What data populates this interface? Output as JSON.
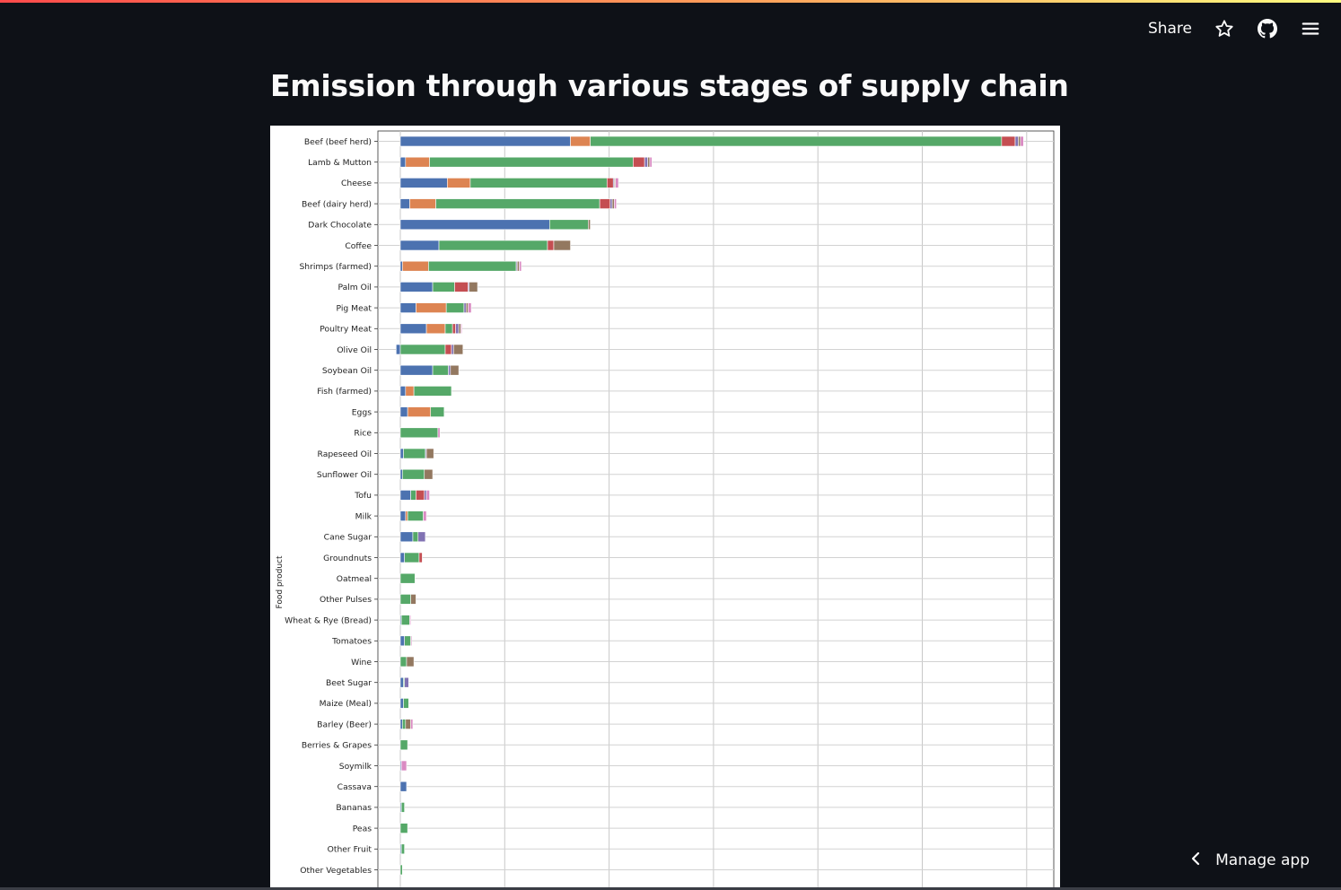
{
  "toolbar": {
    "share_label": "Share",
    "icons": [
      "star-icon",
      "github-icon",
      "hamburger-menu-icon"
    ]
  },
  "page": {
    "title": "Emission through various stages of supply chain"
  },
  "footer": {
    "manage_app_label": "Manage app",
    "icon": "chevron-left-icon"
  },
  "colors": {
    "background": "#0e1117",
    "text": "#fafafa",
    "chart_background": "#ffffff"
  },
  "chart_data": {
    "type": "bar",
    "orientation": "horizontal",
    "stacked": true,
    "title": "",
    "xlabel": "",
    "ylabel": "Food product",
    "grid": true,
    "categories": [
      "Beef (beef herd)",
      "Lamb & Mutton",
      "Cheese",
      "Beef (dairy herd)",
      "Dark Chocolate",
      "Coffee",
      "Shrimps (farmed)",
      "Palm Oil",
      "Pig Meat",
      "Poultry Meat",
      "Olive Oil",
      "Soybean Oil",
      "Fish (farmed)",
      "Eggs",
      "Rice",
      "Rapeseed Oil",
      "Sunflower Oil",
      "Tofu",
      "Milk",
      "Cane Sugar",
      "Groundnuts",
      "Oatmeal",
      "Other Pulses",
      "Wheat & Rye (Bread)",
      "Tomatoes",
      "Wine",
      "Beet Sugar",
      "Maize (Meal)",
      "Barley (Beer)",
      "Berries & Grapes",
      "Soymilk",
      "Cassava",
      "Bananas",
      "Peas",
      "Other Fruit",
      "Other Vegetables"
    ],
    "series": [
      {
        "color": "#4c72b0",
        "values": [
          16.3,
          0.5,
          4.5,
          0.9,
          14.3,
          3.7,
          0.2,
          3.1,
          1.5,
          2.5,
          -0.4,
          3.1,
          0.5,
          0.7,
          0.0,
          0.3,
          0.2,
          1.0,
          0.5,
          1.2,
          0.4,
          0.0,
          0.0,
          0.1,
          0.4,
          0.0,
          0.3,
          0.3,
          0.2,
          0.0,
          0.1,
          0.6,
          0.1,
          0.0,
          0.1,
          0.0
        ]
      },
      {
        "color": "#dd8452",
        "values": [
          1.9,
          2.3,
          2.2,
          2.5,
          0.0,
          0.0,
          2.5,
          0.0,
          2.9,
          1.8,
          0.0,
          0.0,
          0.8,
          2.2,
          0.0,
          0.0,
          0.0,
          0.0,
          0.2,
          0.0,
          0.0,
          0.0,
          0.0,
          0.0,
          0.0,
          0.0,
          0.0,
          0.0,
          0.0,
          0.0,
          0.0,
          0.0,
          0.0,
          0.0,
          0.0,
          0.0
        ]
      },
      {
        "color": "#55a868",
        "values": [
          39.4,
          19.5,
          13.1,
          15.7,
          3.7,
          10.4,
          8.4,
          2.1,
          1.7,
          0.7,
          4.3,
          1.5,
          3.6,
          1.3,
          3.6,
          2.1,
          2.1,
          0.5,
          1.5,
          0.5,
          1.4,
          1.4,
          1.0,
          0.8,
          0.6,
          0.6,
          0.1,
          0.5,
          0.3,
          0.7,
          0.0,
          0.0,
          0.3,
          0.7,
          0.3,
          0.2
        ]
      },
      {
        "color": "#c44e52",
        "values": [
          1.3,
          1.1,
          0.6,
          1.0,
          0.0,
          0.6,
          0.0,
          1.3,
          0.0,
          0.3,
          0.6,
          0.0,
          0.0,
          0.0,
          0.0,
          0.0,
          0.0,
          0.8,
          0.0,
          0.0,
          0.3,
          0.0,
          0.0,
          0.0,
          0.0,
          0.0,
          0.0,
          0.0,
          0.0,
          0.0,
          0.0,
          0.0,
          0.0,
          0.0,
          0.0,
          0.0
        ]
      },
      {
        "color": "#8172b3",
        "values": [
          0.3,
          0.3,
          0.1,
          0.2,
          0.0,
          0.0,
          0.1,
          0.1,
          0.2,
          0.3,
          0.2,
          0.2,
          0.0,
          0.0,
          0.0,
          0.1,
          0.0,
          0.2,
          0.0,
          0.7,
          0.0,
          0.0,
          0.0,
          0.0,
          0.0,
          0.0,
          0.4,
          0.0,
          0.0,
          0.0,
          0.0,
          0.0,
          0.0,
          0.0,
          0.0,
          0.0
        ]
      },
      {
        "color": "#937860",
        "values": [
          0.2,
          0.2,
          0.1,
          0.2,
          0.2,
          1.6,
          0.2,
          0.8,
          0.2,
          0.2,
          0.9,
          0.8,
          0.0,
          0.0,
          0.0,
          0.7,
          0.8,
          0.0,
          0.0,
          0.0,
          0.0,
          0.0,
          0.5,
          0.0,
          0.0,
          0.7,
          0.0,
          0.0,
          0.5,
          0.0,
          0.0,
          0.0,
          0.0,
          0.0,
          0.0,
          0.0
        ]
      },
      {
        "color": "#da8bc3",
        "values": [
          0.3,
          0.2,
          0.3,
          0.2,
          0.0,
          0.0,
          0.2,
          0.0,
          0.3,
          0.1,
          0.0,
          0.0,
          0.0,
          0.0,
          0.2,
          0.0,
          0.0,
          0.3,
          0.3,
          0.0,
          0.0,
          0.0,
          0.0,
          0.1,
          0.1,
          0.0,
          0.0,
          0.0,
          0.2,
          0.0,
          0.5,
          0.0,
          0.0,
          0.0,
          0.0,
          0.0
        ]
      }
    ],
    "xlim": [
      -2,
      62
    ],
    "x_gridlines": [
      0,
      10,
      20,
      30,
      40,
      50,
      60
    ]
  }
}
